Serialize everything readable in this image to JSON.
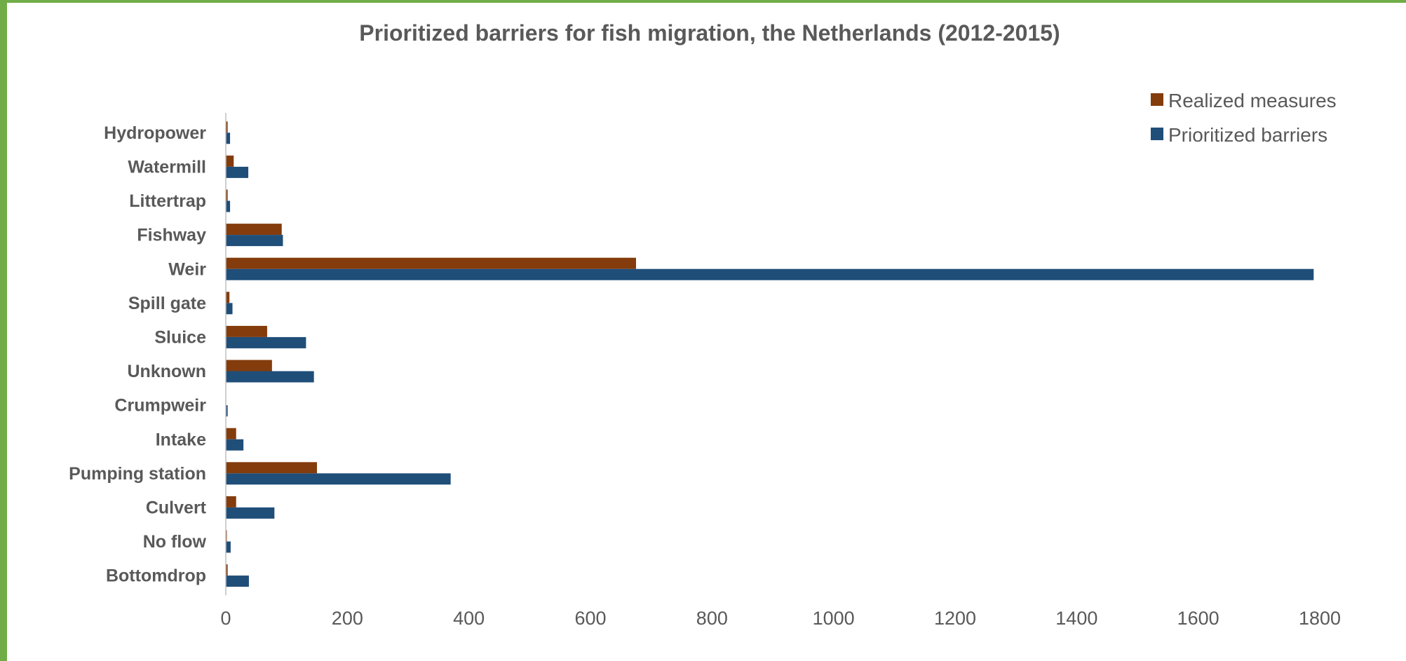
{
  "colors": {
    "frame": "#70ad47",
    "realized": "#843c0c",
    "prioritized": "#1f4e79",
    "text": "#595959",
    "axis": "#bfbfbf"
  },
  "chart_data": {
    "type": "bar",
    "orientation": "horizontal",
    "title": "Prioritized barriers for fish migration, the Netherlands (2012-2015)",
    "xlabel": "",
    "ylabel": "",
    "categories": [
      "Hydropower",
      "Watermill",
      "Littertrap",
      "Fishway",
      "Weir",
      "Spill gate",
      "Sluice",
      "Unknown",
      "Crumpweir",
      "Intake",
      "Pumping station",
      "Culvert",
      "No flow",
      "Bottomdrop"
    ],
    "series": [
      {
        "name": "Realized measures",
        "color": "#843c0c",
        "values": [
          3,
          13,
          3,
          92,
          675,
          6,
          68,
          76,
          0,
          17,
          150,
          17,
          1,
          3
        ]
      },
      {
        "name": "Prioritized barriers",
        "color": "#1f4e79",
        "values": [
          7,
          37,
          7,
          94,
          1790,
          11,
          132,
          145,
          3,
          29,
          370,
          80,
          8,
          38
        ]
      }
    ],
    "xlim": [
      0,
      1800
    ],
    "xticks": [
      "0",
      "200",
      "400",
      "600",
      "800",
      "1000",
      "1200",
      "1400",
      "1600",
      "1800"
    ],
    "grid": false,
    "legend_position": "top-right"
  }
}
